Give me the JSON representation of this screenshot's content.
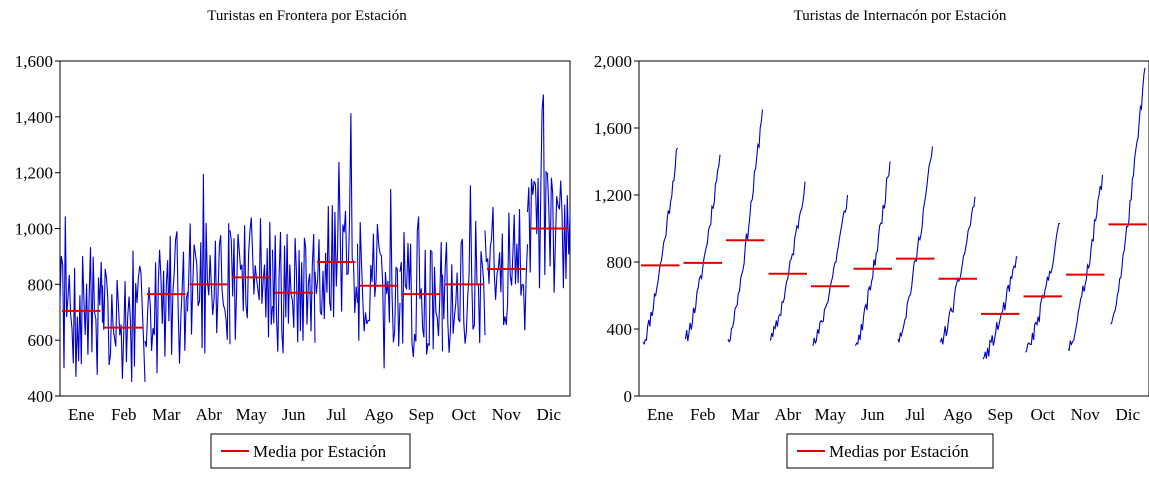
{
  "charts": [
    {
      "type": "line",
      "title": "Turistas en Frontera por Estación",
      "categories": [
        "Ene",
        "Feb",
        "Mar",
        "Abr",
        "May",
        "Jun",
        "Jul",
        "Ago",
        "Sep",
        "Oct",
        "Nov",
        "Dic"
      ],
      "y_ticks": [
        "400",
        "600",
        "800",
        "1,000",
        "1,200",
        "1,400",
        "1,600"
      ],
      "ylim": [
        400,
        1600
      ],
      "grid": false,
      "legend": "bottom-center",
      "colors": {
        "series": "#0000cc",
        "mean": "#dd0000"
      },
      "series": [
        {
          "name": "Media por Estación",
          "role": "mean",
          "values": [
            705,
            645,
            765,
            800,
            825,
            770,
            880,
            795,
            765,
            800,
            855,
            1000
          ]
        }
      ]
    },
    {
      "type": "line",
      "title": "Turistas de Internacón por Estación",
      "categories": [
        "Ene",
        "Feb",
        "Mar",
        "Abr",
        "May",
        "Jun",
        "Jul",
        "Ago",
        "Sep",
        "Oct",
        "Nov",
        "Dic"
      ],
      "y_ticks": [
        "0",
        "400",
        "800",
        "1,200",
        "1,600",
        "2,000"
      ],
      "ylim": [
        0,
        2000
      ],
      "grid": false,
      "legend": "bottom-center",
      "colors": {
        "series": "#0000cc",
        "mean": "#dd0000"
      },
      "series": [
        {
          "name": "Medias por Estación",
          "role": "mean",
          "values": [
            780,
            795,
            930,
            730,
            655,
            760,
            820,
            700,
            490,
            595,
            725,
            1025
          ]
        }
      ],
      "segment_range": [
        {
          "month": "Ene",
          "start": 320,
          "end": 1480
        },
        {
          "month": "Feb",
          "start": 340,
          "end": 1440
        },
        {
          "month": "Mar",
          "start": 340,
          "end": 1710
        },
        {
          "month": "Abr",
          "start": 330,
          "end": 1280
        },
        {
          "month": "May",
          "start": 300,
          "end": 1200
        },
        {
          "month": "Jun",
          "start": 300,
          "end": 1400
        },
        {
          "month": "Jul",
          "start": 340,
          "end": 1490
        },
        {
          "month": "Ago",
          "start": 320,
          "end": 1190
        },
        {
          "month": "Sep",
          "start": 220,
          "end": 830
        },
        {
          "month": "Oct",
          "start": 260,
          "end": 1030
        },
        {
          "month": "Nov",
          "start": 280,
          "end": 1320
        },
        {
          "month": "Dic",
          "start": 430,
          "end": 1960
        }
      ]
    }
  ]
}
